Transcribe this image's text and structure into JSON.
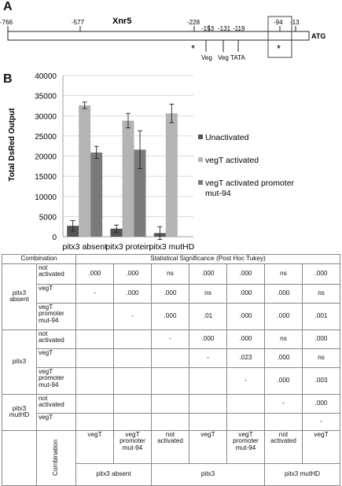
{
  "panel_a": {
    "letter": "A",
    "gene": "Xnr5",
    "end_label": "ATG",
    "positions": [
      "-766",
      "-577",
      "-228",
      "-153",
      "-131",
      "-119",
      "-94",
      "-13"
    ],
    "site_labels": [
      "Veg",
      "Veg",
      "TATA"
    ],
    "star": "*"
  },
  "panel_b_letter": "B",
  "chart_data": {
    "type": "bar",
    "categories": [
      "pitx3 absent",
      "pitx3 protein",
      "pitx3 mutHD"
    ],
    "ylabel": "Total DsRed Output",
    "ylim": [
      0,
      40000
    ],
    "yticks": [
      "0",
      "5000",
      "10000",
      "15000",
      "20000",
      "25000",
      "30000",
      "35000",
      "40000"
    ],
    "series": [
      {
        "name": "Unactivated",
        "color": "#555555",
        "values": [
          2700,
          2000,
          900
        ],
        "errors": [
          1300,
          900,
          1600
        ]
      },
      {
        "name": "vegT activated",
        "color": "#b4b4b4",
        "values": [
          32600,
          28800,
          30600
        ],
        "errors": [
          800,
          1800,
          2300
        ]
      },
      {
        "name": "vegT activated promoter mut-94",
        "color": "#7a7a7a",
        "values": [
          20900,
          21600,
          0
        ],
        "errors": [
          1500,
          4700,
          0
        ]
      }
    ],
    "legend_position": "right"
  },
  "table": {
    "combination_header": "Combination",
    "significance_header": "Statistical Significance (Post Hoc Tukey)",
    "groups": [
      {
        "label": "pitx3 absent",
        "rows": [
          {
            "label": "not activated",
            "values": [
              ".000",
              ".000",
              "ns",
              ".000",
              ".000",
              "ns",
              ".000"
            ]
          },
          {
            "label": "vegT",
            "values": [
              "-",
              ".000",
              ".000",
              "ns",
              ".000",
              ".000",
              "ns"
            ]
          },
          {
            "label": "vegT promoter mut-94",
            "values": [
              "",
              "-",
              ".000",
              ".01",
              ".000",
              ".000",
              ".001"
            ]
          }
        ]
      },
      {
        "label": "pitx3",
        "rows": [
          {
            "label": "not activated",
            "values": [
              "",
              "",
              "-",
              ".000",
              ".000",
              "ns",
              ".000"
            ]
          },
          {
            "label": "vegT",
            "values": [
              "",
              "",
              "",
              "-",
              ".023",
              ".000",
              "ns"
            ]
          },
          {
            "label": "vegT promoter mut-94",
            "values": [
              "",
              "",
              "",
              "",
              "-",
              ".000",
              ".003"
            ]
          }
        ]
      },
      {
        "label": "pitx3 mutHD",
        "rows": [
          {
            "label": "not activated",
            "values": [
              "",
              "",
              "",
              "",
              "",
              "-",
              ".000"
            ]
          },
          {
            "label": "vegT",
            "values": [
              "",
              "",
              "",
              "",
              "",
              "",
              "-"
            ]
          }
        ]
      }
    ],
    "column_labels": [
      "vegT",
      "vegT promoter mut-94",
      "not activated",
      "vegT",
      "vegT promoter mut-94",
      "not activated",
      "vegT"
    ],
    "column_groups": [
      "pitx3 absent",
      "pitx3",
      "pitx3 mutHD"
    ],
    "bottom_label": "Combination"
  }
}
